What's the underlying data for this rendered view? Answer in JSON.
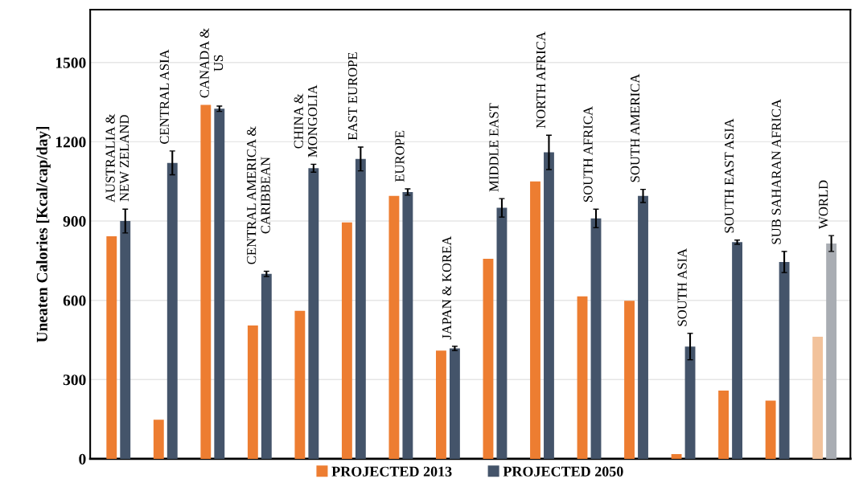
{
  "chart_data": {
    "type": "bar",
    "ylabel": "Uneaten Calories [Kcal/cap/day]",
    "categories": [
      "AUSTRALIA &\nNEW ZELAND",
      "CENTRAL ASIA",
      "CANADA &\nUS",
      "CENTRAL AMERICA &\nCARIBBEAN",
      "CHINA &\nMONGOLIA",
      "EAST EUROPE",
      "EUROPE",
      "JAPAN & KOREA",
      "MIDDLE EAST",
      "NORTH AFRICA",
      "SOUTH AFRICA",
      "SOUTH AMERICA",
      "SOUTH ASIA",
      "SOUTH EAST ASIA",
      "SUB SAHARAN AFRICA",
      "WORLD"
    ],
    "series": [
      {
        "name": "PROJECTED 2013",
        "color": "#ed7d31",
        "colors": [
          "#ed7d31",
          "#ed7d31",
          "#ed7d31",
          "#ed7d31",
          "#ed7d31",
          "#ed7d31",
          "#ed7d31",
          "#ed7d31",
          "#ed7d31",
          "#ed7d31",
          "#ed7d31",
          "#ed7d31",
          "#ed7d31",
          "#ed7d31",
          "#ed7d31",
          "#f2c29b"
        ],
        "values": [
          842,
          148,
          1340,
          505,
          560,
          895,
          995,
          410,
          757,
          1050,
          615,
          598,
          18,
          258,
          220,
          462
        ]
      },
      {
        "name": "PROJECTED 2050",
        "color": "#44546a",
        "colors": [
          "#44546a",
          "#44546a",
          "#44546a",
          "#44546a",
          "#44546a",
          "#44546a",
          "#44546a",
          "#44546a",
          "#44546a",
          "#44546a",
          "#44546a",
          "#44546a",
          "#44546a",
          "#44546a",
          "#44546a",
          "#a9adb3"
        ],
        "values": [
          900,
          1120,
          1325,
          700,
          1100,
          1135,
          1010,
          418,
          950,
          1160,
          910,
          995,
          425,
          820,
          745,
          815
        ],
        "errors": [
          45,
          45,
          10,
          10,
          15,
          45,
          12,
          8,
          35,
          65,
          35,
          25,
          50,
          8,
          40,
          30
        ]
      }
    ],
    "ylim": [
      0,
      1700
    ],
    "yticks": [
      0,
      300,
      600,
      900,
      1200,
      1500
    ],
    "grid": "y",
    "legend": "bottom",
    "tick_labels": "y"
  }
}
